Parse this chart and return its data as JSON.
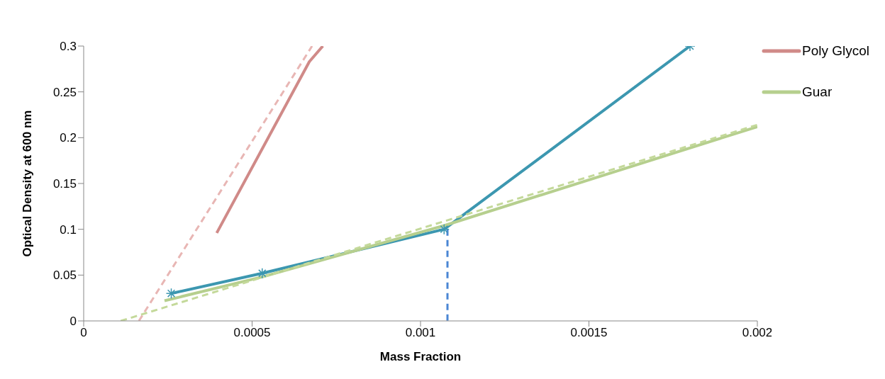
{
  "chart_data": {
    "type": "line",
    "xlabel": "Mass Fraction",
    "ylabel": "Optical Density  at 600 nm",
    "xlim": [
      0,
      0.002
    ],
    "xticks": [
      0,
      0.0005,
      0.001,
      0.0015,
      0.002
    ],
    "ylim": [
      0,
      0.3
    ],
    "yticks": [
      0,
      0.05,
      0.1,
      0.15,
      0.2,
      0.25,
      0.3
    ],
    "grid": false,
    "legend": "top right",
    "marker": "none",
    "line_style": "solid",
    "series": [
      {
        "color": "#3c97b0",
        "marker": "cross",
        "x": [
          0.00026,
          0.00053,
          0.00107,
          0.0018
        ],
        "values": [
          0.03,
          0.052,
          0.1,
          0.3
        ]
      },
      {
        "name": "Poly Glycol",
        "color": "#d08a88",
        "x": [
          0.000395,
          0.00067,
          0.00071
        ],
        "values": [
          0.096,
          0.283,
          0.3
        ]
      },
      {
        "name": "Guar",
        "color": "#b6cf8e",
        "x": [
          0.00024,
          0.00053,
          0.00107,
          0.002
        ],
        "values": [
          0.022,
          0.048,
          0.104,
          0.212
        ]
      },
      {
        "color": "#e8b6b4",
        "line_style": "dashed",
        "x": [
          0.000164,
          0.000678
        ],
        "values": [
          0,
          0.3
        ]
      },
      {
        "color": "#c4d99a",
        "line_style": "dashed",
        "x": [
          0.00011,
          0.002
        ],
        "values": [
          0,
          0.214
        ]
      },
      {
        "color": "#4a86d4",
        "line_style": "dashed",
        "x": [
          0.00108,
          0.00108
        ],
        "values": [
          0.1,
          0
        ]
      }
    ]
  }
}
